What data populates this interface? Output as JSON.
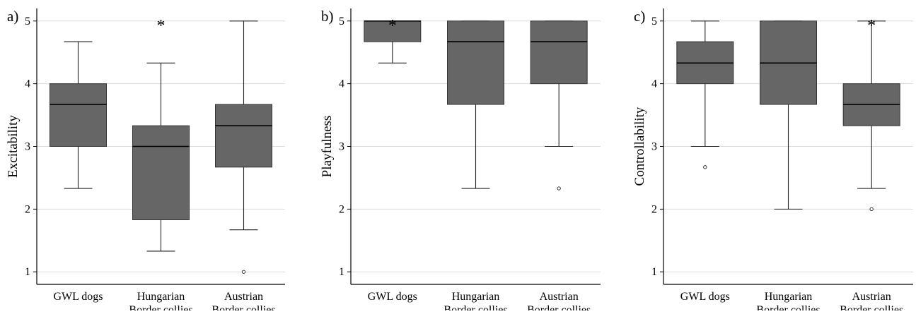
{
  "chart_data": [
    {
      "type": "boxplot",
      "panel_label": "a)",
      "ylabel": "Excitability",
      "ylim": [
        0.8,
        5.2
      ],
      "yticks": [
        1,
        2,
        3,
        4,
        5
      ],
      "grid": true,
      "categories": [
        "GWL dogs",
        "Hungarian\nBorder collies",
        "Austrian\nBorder collies"
      ],
      "boxes": [
        {
          "whisker_low": 2.33,
          "q1": 3.0,
          "median": 3.67,
          "q3": 4.0,
          "whisker_high": 4.67,
          "outliers": []
        },
        {
          "whisker_low": 1.33,
          "q1": 1.83,
          "median": 3.0,
          "q3": 3.33,
          "whisker_high": 4.33,
          "outliers": []
        },
        {
          "whisker_low": 1.67,
          "q1": 2.67,
          "median": 3.33,
          "q3": 3.67,
          "whisker_high": 5.0,
          "outliers": [
            1.0
          ]
        }
      ],
      "significance": [
        {
          "category_index": 1,
          "symbol": "*"
        }
      ]
    },
    {
      "type": "boxplot",
      "panel_label": "b)",
      "ylabel": "Playfulness",
      "ylim": [
        0.8,
        5.2
      ],
      "yticks": [
        1,
        2,
        3,
        4,
        5
      ],
      "grid": true,
      "categories": [
        "GWL dogs",
        "Hungarian\nBorder collies",
        "Austrian\nBorder collies"
      ],
      "boxes": [
        {
          "whisker_low": 4.33,
          "q1": 4.67,
          "median": 5.0,
          "q3": 5.0,
          "whisker_high": 5.0,
          "outliers": []
        },
        {
          "whisker_low": 2.33,
          "q1": 3.67,
          "median": 4.67,
          "q3": 5.0,
          "whisker_high": 5.0,
          "outliers": []
        },
        {
          "whisker_low": 3.0,
          "q1": 4.0,
          "median": 4.67,
          "q3": 5.0,
          "whisker_high": 5.0,
          "outliers": [
            2.33
          ]
        }
      ],
      "significance": [
        {
          "category_index": 0,
          "symbol": "*"
        }
      ]
    },
    {
      "type": "boxplot",
      "panel_label": "c)",
      "ylabel": "Controllability",
      "ylim": [
        0.8,
        5.2
      ],
      "yticks": [
        1,
        2,
        3,
        4,
        5
      ],
      "grid": true,
      "categories": [
        "GWL dogs",
        "Hungarian\nBorder collies",
        "Austrian\nBorder collies"
      ],
      "boxes": [
        {
          "whisker_low": 3.0,
          "q1": 4.0,
          "median": 4.33,
          "q3": 4.67,
          "whisker_high": 5.0,
          "outliers": [
            2.67
          ]
        },
        {
          "whisker_low": 2.0,
          "q1": 3.67,
          "median": 4.33,
          "q3": 5.0,
          "whisker_high": 5.0,
          "outliers": []
        },
        {
          "whisker_low": 2.33,
          "q1": 3.33,
          "median": 3.67,
          "q3": 4.0,
          "whisker_high": 5.0,
          "outliers": [
            2.0
          ]
        }
      ],
      "significance": [
        {
          "category_index": 2,
          "symbol": "*"
        }
      ]
    }
  ],
  "colors": {
    "box_fill": "#666666",
    "box_stroke": "#333333",
    "grid": "#dcdcdc"
  }
}
